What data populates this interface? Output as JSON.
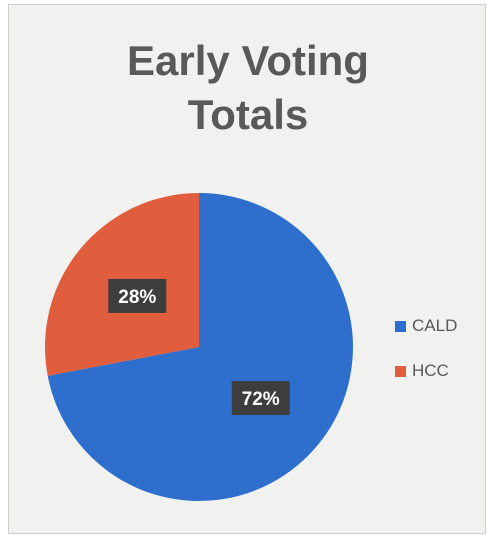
{
  "chart_data": {
    "type": "pie",
    "title_lines": [
      "Early Voting",
      "Totals"
    ],
    "categories": [
      "CALD",
      "HCC"
    ],
    "values": [
      72,
      28
    ],
    "data_labels": [
      "72%",
      "28%"
    ],
    "colors": [
      "#2e6fce",
      "#e05d3e"
    ],
    "label_bg": "#3d3d3d",
    "legend_position": "right"
  }
}
